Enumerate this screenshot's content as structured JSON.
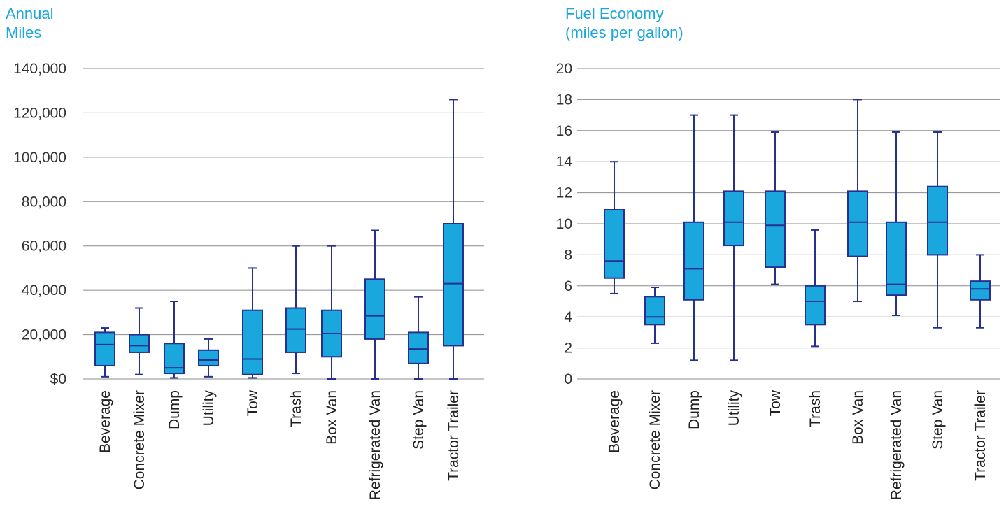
{
  "colors": {
    "box_fill": "#1aa7dd",
    "box_stroke": "#27308f",
    "grid": "#8c8c8c",
    "title": "#1aa7dd"
  },
  "chart_data": [
    {
      "type": "boxplot",
      "title_line1": "Annual",
      "title_line2": "Miles",
      "ylim": [
        0,
        140000
      ],
      "yticks": [
        0,
        20000,
        40000,
        60000,
        80000,
        100000,
        120000,
        140000
      ],
      "ytick_labels": [
        "$0",
        "20,000",
        "40,000",
        "60,000",
        "80,000",
        "100,000",
        "120,000",
        "140,000"
      ],
      "grid": true,
      "categories": [
        "Beverage",
        "Concrete Mixer",
        "Dump",
        "Utility",
        "Tow",
        "Trash",
        "Box Van",
        "Refrigerated Van",
        "Step Van",
        "Tractor Trailer"
      ],
      "boxes": [
        {
          "min": 1000,
          "q1": 6000,
          "median": 15500,
          "q3": 21000,
          "max": 23000
        },
        {
          "min": 2000,
          "q1": 12000,
          "median": 15000,
          "q3": 20000,
          "max": 32000
        },
        {
          "min": 500,
          "q1": 2500,
          "median": 5000,
          "q3": 16000,
          "max": 35000
        },
        {
          "min": 1000,
          "q1": 6000,
          "median": 8500,
          "q3": 13000,
          "max": 18000
        },
        {
          "min": 500,
          "q1": 2000,
          "median": 9000,
          "q3": 31000,
          "max": 50000
        },
        {
          "min": 2500,
          "q1": 12000,
          "median": 22500,
          "q3": 32000,
          "max": 60000
        },
        {
          "min": 0,
          "q1": 10000,
          "median": 20500,
          "q3": 31000,
          "max": 60000
        },
        {
          "min": 0,
          "q1": 18000,
          "median": 28500,
          "q3": 45000,
          "max": 67000
        },
        {
          "min": 0,
          "q1": 7000,
          "median": 13500,
          "q3": 21000,
          "max": 37000
        },
        {
          "min": 0,
          "q1": 15000,
          "median": 43000,
          "q3": 70000,
          "max": 126000
        }
      ]
    },
    {
      "type": "boxplot",
      "title_line1": "Fuel Economy",
      "title_line2": "(miles per gallon)",
      "ylim": [
        0,
        20
      ],
      "yticks": [
        0,
        2,
        4,
        6,
        8,
        10,
        12,
        14,
        16,
        18,
        20
      ],
      "ytick_labels": [
        "0",
        "2",
        "4",
        "6",
        "8",
        "10",
        "12",
        "14",
        "16",
        "18",
        "20"
      ],
      "grid": true,
      "categories": [
        "Beverage",
        "Concrete Mixer",
        "Dump",
        "Utility",
        "Tow",
        "Trash",
        "Box Van",
        "Refrigerated Van",
        "Step Van",
        "Tractor Trailer"
      ],
      "boxes": [
        {
          "min": 5.5,
          "q1": 6.5,
          "median": 7.6,
          "q3": 10.9,
          "max": 14
        },
        {
          "min": 2.3,
          "q1": 3.5,
          "median": 4.0,
          "q3": 5.3,
          "max": 5.9
        },
        {
          "min": 1.2,
          "q1": 5.1,
          "median": 7.1,
          "q3": 10.1,
          "max": 17
        },
        {
          "min": 1.2,
          "q1": 8.6,
          "median": 10.1,
          "q3": 12.1,
          "max": 17
        },
        {
          "min": 6.1,
          "q1": 7.2,
          "median": 9.9,
          "q3": 12.1,
          "max": 15.9
        },
        {
          "min": 2.1,
          "q1": 3.5,
          "median": 5.0,
          "q3": 6.0,
          "max": 9.6
        },
        {
          "min": 5.0,
          "q1": 7.9,
          "median": 10.1,
          "q3": 12.1,
          "max": 18
        },
        {
          "min": 4.1,
          "q1": 5.4,
          "median": 6.1,
          "q3": 10.1,
          "max": 15.9
        },
        {
          "min": 3.3,
          "q1": 8.0,
          "median": 10.1,
          "q3": 12.4,
          "max": 15.9
        },
        {
          "min": 3.3,
          "q1": 5.1,
          "median": 5.8,
          "q3": 6.3,
          "max": 8.0
        }
      ]
    }
  ]
}
